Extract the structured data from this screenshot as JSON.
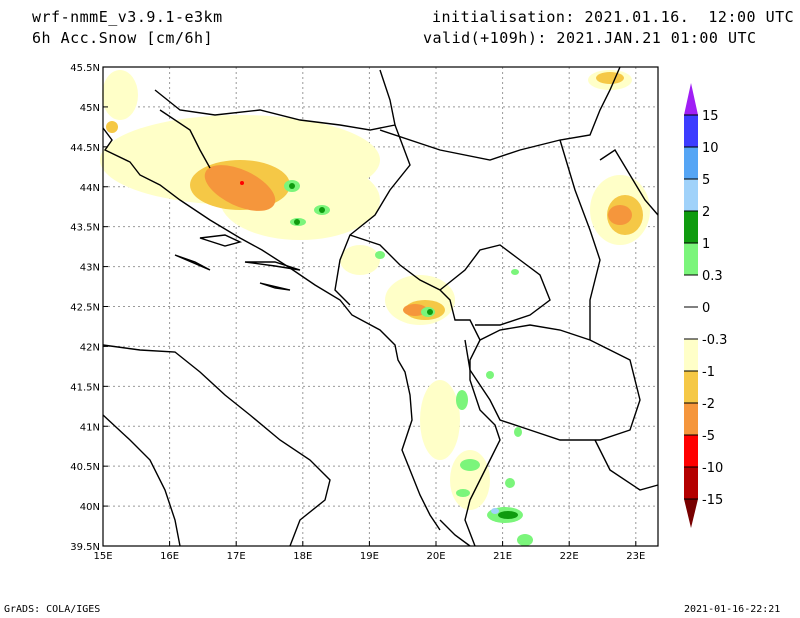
{
  "header": {
    "model": "wrf-nmmE_v3.9.1-e3km",
    "variable": "6h Acc.Snow [cm/6h]",
    "initialisation": "initialisation: 2021.01.16.  12:00 UTC",
    "valid": "valid(+109h): 2021.JAN.21 01:00 UTC"
  },
  "footer": {
    "credit": "GrADS: COLA/IGES",
    "timestamp": "2021-01-16-22:21"
  },
  "map": {
    "lat_labels": [
      "45.5N",
      "45N",
      "44.5N",
      "44N",
      "43.5N",
      "43N",
      "42.5N",
      "42N",
      "41.5N",
      "41N",
      "40.5N",
      "40N",
      "39.5N"
    ],
    "lon_labels": [
      "15E",
      "16E",
      "17E",
      "18E",
      "19E",
      "20E",
      "21E",
      "22E",
      "23E"
    ]
  },
  "colorbar": {
    "labels": [
      "15",
      "10",
      "5",
      "2",
      "1",
      "0.3",
      "0",
      "-0.3",
      "-1",
      "-2",
      "-5",
      "-10",
      "-15"
    ],
    "colors": [
      "#3c3cff",
      "#55a5f5",
      "#a0d2fa",
      "#0f9b0f",
      "#7bf57b",
      "#ffffff",
      "#ffffff",
      "#ffffc8",
      "#f5c846",
      "#f5963c",
      "#ff0000",
      "#b40000"
    ],
    "top_color": "#a01ef5",
    "bottom_color": "#780000"
  }
}
